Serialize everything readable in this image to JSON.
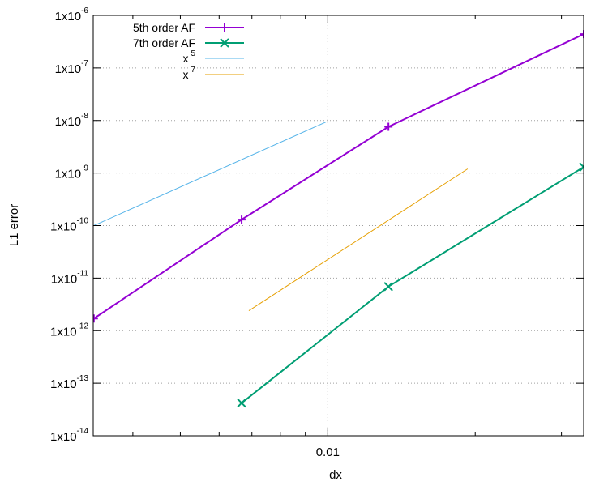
{
  "chart_data": {
    "type": "line",
    "xscale": "log",
    "yscale": "log",
    "xlim": [
      0.00332,
      0.0333
    ],
    "ylim": [
      1e-14,
      1e-06
    ],
    "xlabel": "dx",
    "ylabel": "L1 error",
    "grid": true,
    "legend_position": "top-right",
    "x_ticks": [
      {
        "value": 0.01,
        "label": "0.01"
      }
    ],
    "y_ticks": [
      {
        "value": 1e-06,
        "base": "1x10",
        "exp": "-6"
      },
      {
        "value": 1e-07,
        "base": "1x10",
        "exp": "-7"
      },
      {
        "value": 1e-08,
        "base": "1x10",
        "exp": "-8"
      },
      {
        "value": 1e-09,
        "base": "1x10",
        "exp": "-9"
      },
      {
        "value": 1e-10,
        "base": "1x10",
        "exp": "-10"
      },
      {
        "value": 1e-11,
        "base": "1x10",
        "exp": "-11"
      },
      {
        "value": 1e-12,
        "base": "1x10",
        "exp": "-12"
      },
      {
        "value": 1e-13,
        "base": "1x10",
        "exp": "-13"
      },
      {
        "value": 1e-14,
        "base": "1x10",
        "exp": "-14"
      }
    ],
    "series": [
      {
        "name": "5th order AF",
        "color": "#9400d3",
        "marker": "plus",
        "width": 2,
        "x": [
          0.00333,
          0.00667,
          0.0133,
          0.0333
        ],
        "y": [
          1.7e-12,
          1.3e-10,
          7.6e-09,
          4.4e-07
        ]
      },
      {
        "name": "7th order AF",
        "color": "#009e73",
        "marker": "cross",
        "width": 2,
        "x": [
          0.00667,
          0.0133,
          0.0333
        ],
        "y": [
          4.2e-14,
          6.9e-12,
          1.3e-09
        ]
      },
      {
        "name_base": "x",
        "name_exp": "5",
        "color": "#56b4e9",
        "marker": "none",
        "width": 1,
        "x": [
          0.00333,
          0.0099
        ],
        "y": [
          1e-10,
          9.3e-09
        ]
      },
      {
        "name_base": "x",
        "name_exp": "7",
        "color": "#e69f00",
        "marker": "none",
        "width": 1,
        "x": [
          0.0069,
          0.0193
        ],
        "y": [
          2.4e-12,
          1.2e-09
        ]
      }
    ]
  }
}
